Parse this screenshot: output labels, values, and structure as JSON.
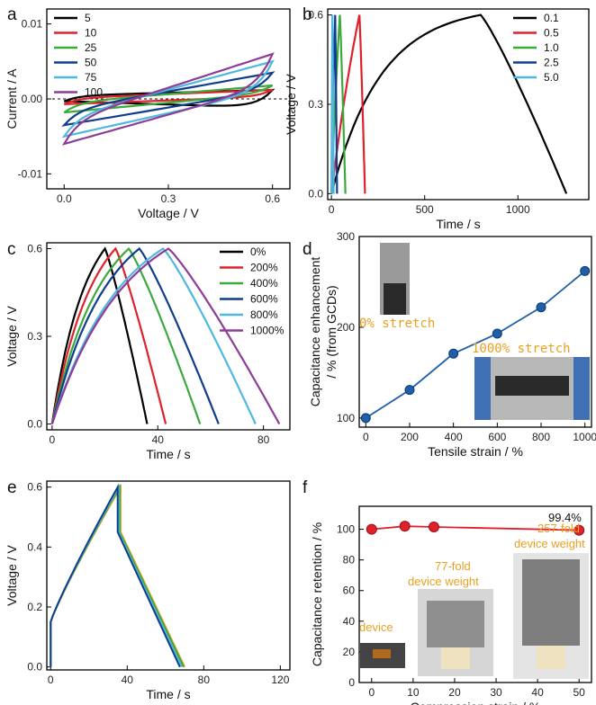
{
  "chart_data": [
    {
      "panel": "a",
      "type": "line",
      "xlabel": "Voltage / V",
      "ylabel": "Current / A",
      "xlim": [
        -0.05,
        0.65
      ],
      "ylim": [
        -0.012,
        0.012
      ],
      "xticks": [
        "0.0",
        "0.3",
        "0.6"
      ],
      "xtick_values": [
        0,
        0.3,
        0.6
      ],
      "yticks": [
        "-0.01",
        "0.00",
        "0.01"
      ],
      "ytick_values": [
        -0.01,
        0,
        0.01
      ],
      "series": [
        {
          "name": "5",
          "color": "#000000",
          "upper_start": 0.00045,
          "upper_end": 0.0012,
          "lower_start": -0.0003,
          "lower_end": -0.0012
        },
        {
          "name": "10",
          "color": "#e0202a",
          "upper_start": 0.0001,
          "upper_end": 0.0012,
          "lower_start": -0.0007,
          "lower_end": 0.0003
        },
        {
          "name": "25",
          "color": "#3aaa3a",
          "upper_start": -0.0005,
          "upper_end": 0.0018,
          "lower_start": -0.0018,
          "lower_end": 0.0008
        },
        {
          "name": "50",
          "color": "#103d8c",
          "upper_start": -0.0015,
          "upper_end": 0.0035,
          "lower_start": -0.0035,
          "lower_end": 0.0012
        },
        {
          "name": "75",
          "color": "#4fb8e0",
          "upper_start": -0.0025,
          "upper_end": 0.005,
          "lower_start": -0.005,
          "lower_end": 0.0012
        },
        {
          "name": "100",
          "color": "#8e3c96",
          "upper_start": -0.003,
          "upper_end": 0.006,
          "lower_start": -0.006,
          "lower_end": 0.0018
        }
      ]
    },
    {
      "panel": "b",
      "type": "line",
      "xlabel": "Time / s",
      "ylabel": "Voltage / V",
      "xlim": [
        -20,
        1380
      ],
      "ylim": [
        -0.02,
        0.62
      ],
      "xticks": [
        "0",
        "500",
        "1000"
      ],
      "xtick_values": [
        0,
        500,
        1000
      ],
      "yticks": [
        "0.0",
        "0.3",
        "0.6"
      ],
      "ytick_values": [
        0,
        0.3,
        0.6
      ],
      "series": [
        {
          "name": "0.1",
          "color": "#000000",
          "t_charge": 800,
          "t_end": 1260
        },
        {
          "name": "0.5",
          "color": "#e0202a",
          "t_charge": 150,
          "t_end": 180
        },
        {
          "name": "1.0",
          "color": "#3aaa3a",
          "t_charge": 45,
          "t_end": 75
        },
        {
          "name": "2.5",
          "color": "#103d8c",
          "t_charge": 20,
          "t_end": 30
        },
        {
          "name": "5.0",
          "color": "#4fb8e0",
          "t_charge": 5,
          "t_end": 12
        }
      ]
    },
    {
      "panel": "c",
      "type": "line",
      "xlabel": "Time / s",
      "ylabel": "Voltage / V",
      "xlim": [
        -2,
        90
      ],
      "ylim": [
        -0.02,
        0.62
      ],
      "xticks": [
        "0",
        "40",
        "80"
      ],
      "xtick_values": [
        0,
        40,
        80
      ],
      "yticks": [
        "0.0",
        "0.3",
        "0.6"
      ],
      "ytick_values": [
        0,
        0.3,
        0.6
      ],
      "series": [
        {
          "name": "0%",
          "color": "#000000",
          "t_charge": 20,
          "t_end": 36
        },
        {
          "name": "200%",
          "color": "#e0202a",
          "t_charge": 24,
          "t_end": 43
        },
        {
          "name": "400%",
          "color": "#3aaa3a",
          "t_charge": 29,
          "t_end": 56
        },
        {
          "name": "600%",
          "color": "#103d8c",
          "t_charge": 33,
          "t_end": 63
        },
        {
          "name": "800%",
          "color": "#4fb8e0",
          "t_charge": 42,
          "t_end": 77
        },
        {
          "name": "1000%",
          "color": "#8e3c96",
          "t_charge": 44,
          "t_end": 86
        }
      ]
    },
    {
      "panel": "d",
      "type": "scatter",
      "xlabel": "Tensile strain / %",
      "ylabel": "Capacitance enhancement",
      "ylabel2": "/ % (from GCDs)",
      "xlim": [
        -30,
        1030
      ],
      "ylim": [
        90,
        300
      ],
      "xticks": [
        "0",
        "200",
        "400",
        "600",
        "800",
        "1000"
      ],
      "xtick_values": [
        0,
        200,
        400,
        600,
        800,
        1000
      ],
      "yticks": [
        "100",
        "200",
        "300"
      ],
      "ytick_values": [
        100,
        200,
        300
      ],
      "x": [
        0,
        200,
        400,
        600,
        800,
        1000
      ],
      "y": [
        100,
        131,
        171,
        193,
        222,
        262
      ],
      "color": "#1f5fa8",
      "annotations": [
        "0% stretch",
        "1000% stretch"
      ]
    },
    {
      "panel": "e",
      "type": "line",
      "xlabel": "Time / s",
      "ylabel": "Voltage / V",
      "xlim": [
        -2,
        125
      ],
      "ylim": [
        -0.01,
        0.62
      ],
      "xticks": [
        "0",
        "40",
        "80",
        "120"
      ],
      "xtick_values": [
        0,
        40,
        80,
        120
      ],
      "yticks": [
        "0.0",
        "0.2",
        "0.4",
        "0.6"
      ],
      "ytick_values": [
        0,
        0.2,
        0.4,
        0.6
      ],
      "series": [
        {
          "color": "#e8a020",
          "t_charge": 36.5,
          "t_end": 70
        },
        {
          "color": "#3aaa3a",
          "t_charge": 36,
          "t_end": 69.5
        },
        {
          "color": "#4fb8e0",
          "t_charge": 35.5,
          "t_end": 68.5
        },
        {
          "color": "#103d8c",
          "t_charge": 35,
          "t_end": 67.5
        }
      ]
    },
    {
      "panel": "f",
      "type": "scatter",
      "xlabel": "Compression strain / %",
      "ylabel": "Capacitance retention / %",
      "xlim": [
        -3,
        53
      ],
      "ylim": [
        0,
        115
      ],
      "xticks": [
        "0",
        "10",
        "20",
        "30",
        "40",
        "50"
      ],
      "xtick_values": [
        0,
        10,
        20,
        30,
        40,
        50
      ],
      "yticks": [
        "0",
        "20",
        "40",
        "60",
        "80",
        "100"
      ],
      "ytick_values": [
        0,
        20,
        40,
        60,
        80,
        100
      ],
      "x": [
        0,
        8,
        15,
        50
      ],
      "y": [
        100,
        102,
        101.5,
        99.4
      ],
      "color": "#e0202a",
      "annotations": [
        "99.4%",
        "257-fold",
        "device weight",
        "77-fold",
        "device weight",
        "device"
      ]
    }
  ]
}
